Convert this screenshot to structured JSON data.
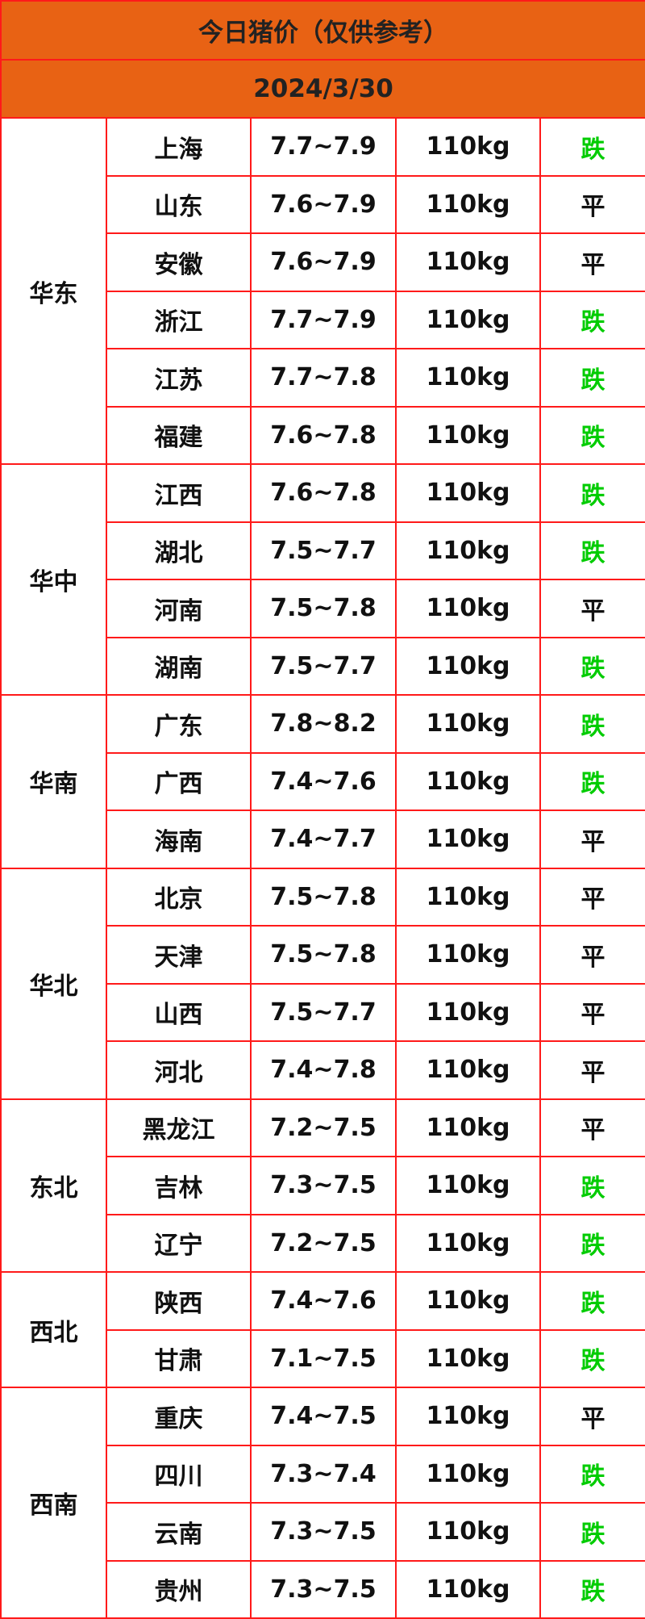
{
  "title": "今日猪价（仅供参考）",
  "date": "2024/3/30",
  "colors": {
    "header_bg": "#e86214",
    "border": "#ff1a1a",
    "down": "#00cc00",
    "flat": "#111111"
  },
  "regions": [
    {
      "name": "华东",
      "rows": [
        {
          "province": "上海",
          "price": "7.7~7.9",
          "weight": "110kg",
          "trend": "跌"
        },
        {
          "province": "山东",
          "price": "7.6~7.9",
          "weight": "110kg",
          "trend": "平"
        },
        {
          "province": "安徽",
          "price": "7.6~7.9",
          "weight": "110kg",
          "trend": "平"
        },
        {
          "province": "浙江",
          "price": "7.7~7.9",
          "weight": "110kg",
          "trend": "跌"
        },
        {
          "province": "江苏",
          "price": "7.7~7.8",
          "weight": "110kg",
          "trend": "跌"
        },
        {
          "province": "福建",
          "price": "7.6~7.8",
          "weight": "110kg",
          "trend": "跌"
        }
      ]
    },
    {
      "name": "华中",
      "rows": [
        {
          "province": "江西",
          "price": "7.6~7.8",
          "weight": "110kg",
          "trend": "跌"
        },
        {
          "province": "湖北",
          "price": "7.5~7.7",
          "weight": "110kg",
          "trend": "跌"
        },
        {
          "province": "河南",
          "price": "7.5~7.8",
          "weight": "110kg",
          "trend": "平"
        },
        {
          "province": "湖南",
          "price": "7.5~7.7",
          "weight": "110kg",
          "trend": "跌"
        }
      ]
    },
    {
      "name": "华南",
      "rows": [
        {
          "province": "广东",
          "price": "7.8~8.2",
          "weight": "110kg",
          "trend": "跌"
        },
        {
          "province": "广西",
          "price": "7.4~7.6",
          "weight": "110kg",
          "trend": "跌"
        },
        {
          "province": "海南",
          "price": "7.4~7.7",
          "weight": "110kg",
          "trend": "平"
        }
      ]
    },
    {
      "name": "华北",
      "rows": [
        {
          "province": "北京",
          "price": "7.5~7.8",
          "weight": "110kg",
          "trend": "平"
        },
        {
          "province": "天津",
          "price": "7.5~7.8",
          "weight": "110kg",
          "trend": "平"
        },
        {
          "province": "山西",
          "price": "7.5~7.7",
          "weight": "110kg",
          "trend": "平"
        },
        {
          "province": "河北",
          "price": "7.4~7.8",
          "weight": "110kg",
          "trend": "平"
        }
      ]
    },
    {
      "name": "东北",
      "rows": [
        {
          "province": "黑龙江",
          "price": "7.2~7.5",
          "weight": "110kg",
          "trend": "平"
        },
        {
          "province": "吉林",
          "price": "7.3~7.5",
          "weight": "110kg",
          "trend": "跌"
        },
        {
          "province": "辽宁",
          "price": "7.2~7.5",
          "weight": "110kg",
          "trend": "跌"
        }
      ]
    },
    {
      "name": "西北",
      "rows": [
        {
          "province": "陕西",
          "price": "7.4~7.6",
          "weight": "110kg",
          "trend": "跌"
        },
        {
          "province": "甘肃",
          "price": "7.1~7.5",
          "weight": "110kg",
          "trend": "跌"
        }
      ]
    },
    {
      "name": "西南",
      "rows": [
        {
          "province": "重庆",
          "price": "7.4~7.5",
          "weight": "110kg",
          "trend": "平"
        },
        {
          "province": "四川",
          "price": "7.3~7.4",
          "weight": "110kg",
          "trend": "跌"
        },
        {
          "province": "云南",
          "price": "7.3~7.5",
          "weight": "110kg",
          "trend": "跌"
        },
        {
          "province": "贵州",
          "price": "7.3~7.5",
          "weight": "110kg",
          "trend": "跌"
        }
      ]
    }
  ]
}
